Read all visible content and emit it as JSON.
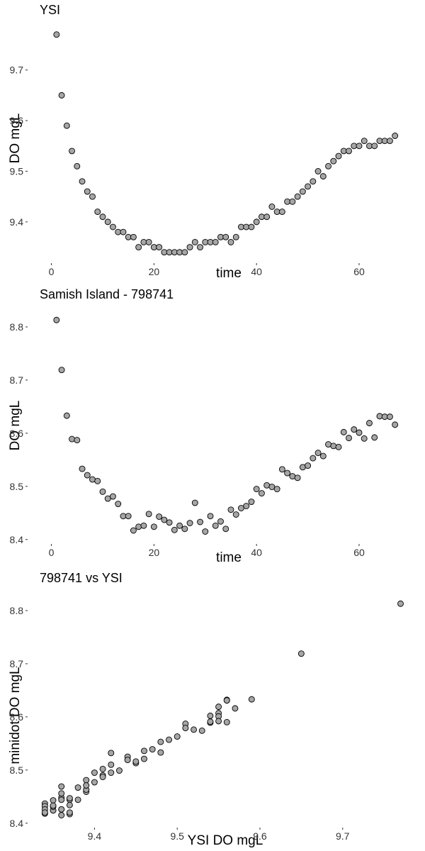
{
  "chart_data": [
    {
      "type": "scatter",
      "title": "YSI",
      "xlabel": "time",
      "ylabel": "DO mgL",
      "xlim": [
        -4.5,
        70.5
      ],
      "ylim": [
        9.32,
        9.785
      ],
      "xticks": [
        0,
        20,
        40,
        60
      ],
      "yticks": [
        9.4,
        9.5,
        9.6,
        9.7
      ],
      "ytick_labels": [
        "9.4",
        "9.5",
        "9.6",
        "9.7"
      ],
      "grid": false,
      "point_color": "#a6a6a6",
      "x": [
        1,
        2,
        3,
        4,
        5,
        6,
        7,
        8,
        9,
        10,
        11,
        12,
        13,
        14,
        15,
        16,
        17,
        18,
        19,
        20,
        21,
        22,
        23,
        24,
        25,
        26,
        27,
        28,
        29,
        30,
        31,
        32,
        33,
        34,
        35,
        36,
        37,
        38,
        39,
        40,
        41,
        42,
        43,
        44,
        45,
        46,
        47,
        48,
        49,
        50,
        51,
        52,
        53,
        54,
        55,
        56,
        57,
        58,
        59,
        60,
        61,
        62,
        63,
        64,
        65,
        66,
        67
      ],
      "y": [
        9.77,
        9.65,
        9.59,
        9.54,
        9.51,
        9.48,
        9.46,
        9.45,
        9.42,
        9.41,
        9.4,
        9.39,
        9.38,
        9.38,
        9.37,
        9.37,
        9.35,
        9.36,
        9.36,
        9.35,
        9.35,
        9.34,
        9.34,
        9.34,
        9.34,
        9.34,
        9.35,
        9.36,
        9.35,
        9.36,
        9.36,
        9.36,
        9.37,
        9.37,
        9.36,
        9.37,
        9.39,
        9.39,
        9.39,
        9.4,
        9.41,
        9.41,
        9.43,
        9.42,
        9.42,
        9.44,
        9.44,
        9.45,
        9.46,
        9.47,
        9.48,
        9.5,
        9.49,
        9.51,
        9.52,
        9.53,
        9.54,
        9.54,
        9.55,
        9.55,
        9.56,
        9.55,
        9.55,
        9.56,
        9.56,
        9.56,
        9.57
      ]
    },
    {
      "type": "scatter",
      "title": "Samish Island - 798741",
      "xlabel": "time",
      "ylabel": "DO mgL",
      "xlim": [
        -4.5,
        70.5
      ],
      "ylim": [
        8.393,
        8.832
      ],
      "xticks": [
        0,
        20,
        40,
        60
      ],
      "yticks": [
        8.4,
        8.5,
        8.6,
        8.7,
        8.8
      ],
      "ytick_labels": [
        "8.4",
        "8.5",
        "8.6",
        "8.7",
        "8.8"
      ],
      "grid": false,
      "point_color": "#a6a6a6",
      "x": [
        1,
        2,
        3,
        4,
        5,
        6,
        7,
        8,
        9,
        10,
        11,
        12,
        13,
        14,
        15,
        16,
        17,
        18,
        19,
        20,
        21,
        22,
        23,
        24,
        25,
        26,
        27,
        28,
        29,
        30,
        31,
        32,
        33,
        34,
        35,
        36,
        37,
        38,
        39,
        40,
        41,
        42,
        43,
        44,
        45,
        46,
        47,
        48,
        49,
        50,
        51,
        52,
        53,
        54,
        55,
        56,
        57,
        58,
        59,
        60,
        61,
        62,
        63,
        64,
        65,
        66,
        67
      ],
      "y": [
        8.813,
        8.719,
        8.633,
        8.589,
        8.587,
        8.533,
        8.521,
        8.513,
        8.51,
        8.49,
        8.477,
        8.481,
        8.467,
        8.444,
        8.444,
        8.417,
        8.424,
        8.426,
        8.448,
        8.424,
        8.443,
        8.437,
        8.432,
        8.418,
        8.426,
        8.42,
        8.431,
        8.469,
        8.433,
        8.415,
        8.444,
        8.426,
        8.434,
        8.42,
        8.456,
        8.447,
        8.459,
        8.463,
        8.471,
        8.495,
        8.487,
        8.502,
        8.499,
        8.495,
        8.532,
        8.525,
        8.519,
        8.516,
        8.536,
        8.539,
        8.553,
        8.563,
        8.557,
        8.579,
        8.576,
        8.574,
        8.602,
        8.591,
        8.607,
        8.601,
        8.59,
        8.619,
        8.592,
        8.632,
        8.631,
        8.631,
        8.616
      ]
    },
    {
      "type": "scatter",
      "title": "798741 vs YSI",
      "xlabel": "YSI DO mgL",
      "ylabel": "minidot DO mgL",
      "xlim": [
        9.32,
        9.785
      ],
      "ylim": [
        8.393,
        8.832
      ],
      "xticks": [
        9.4,
        9.5,
        9.6,
        9.7
      ],
      "xtick_labels": [
        "9.4",
        "9.5",
        "9.6",
        "9.7"
      ],
      "yticks": [
        8.4,
        8.5,
        8.6,
        8.7,
        8.8
      ],
      "ytick_labels": [
        "8.4",
        "8.5",
        "8.6",
        "8.7",
        "8.8"
      ],
      "grid": false,
      "point_color": "#a6a6a6",
      "x": [
        9.77,
        9.65,
        9.59,
        9.54,
        9.51,
        9.48,
        9.46,
        9.45,
        9.42,
        9.41,
        9.4,
        9.39,
        9.38,
        9.38,
        9.37,
        9.37,
        9.35,
        9.36,
        9.36,
        9.35,
        9.35,
        9.34,
        9.34,
        9.34,
        9.34,
        9.34,
        9.35,
        9.36,
        9.35,
        9.36,
        9.36,
        9.36,
        9.37,
        9.37,
        9.36,
        9.37,
        9.39,
        9.39,
        9.39,
        9.4,
        9.41,
        9.41,
        9.43,
        9.42,
        9.42,
        9.44,
        9.44,
        9.45,
        9.46,
        9.47,
        9.48,
        9.5,
        9.49,
        9.51,
        9.52,
        9.53,
        9.54,
        9.54,
        9.55,
        9.55,
        9.56,
        9.55,
        9.55,
        9.56,
        9.56,
        9.56,
        9.57
      ],
      "y": [
        8.813,
        8.719,
        8.633,
        8.589,
        8.587,
        8.533,
        8.521,
        8.513,
        8.51,
        8.49,
        8.477,
        8.481,
        8.467,
        8.444,
        8.444,
        8.417,
        8.424,
        8.426,
        8.448,
        8.424,
        8.443,
        8.437,
        8.432,
        8.418,
        8.426,
        8.42,
        8.431,
        8.469,
        8.433,
        8.415,
        8.444,
        8.426,
        8.434,
        8.42,
        8.456,
        8.447,
        8.459,
        8.463,
        8.471,
        8.495,
        8.487,
        8.502,
        8.499,
        8.495,
        8.532,
        8.525,
        8.519,
        8.516,
        8.536,
        8.539,
        8.553,
        8.563,
        8.557,
        8.579,
        8.576,
        8.574,
        8.602,
        8.591,
        8.607,
        8.601,
        8.59,
        8.619,
        8.592,
        8.632,
        8.631,
        8.631,
        8.616
      ]
    }
  ]
}
